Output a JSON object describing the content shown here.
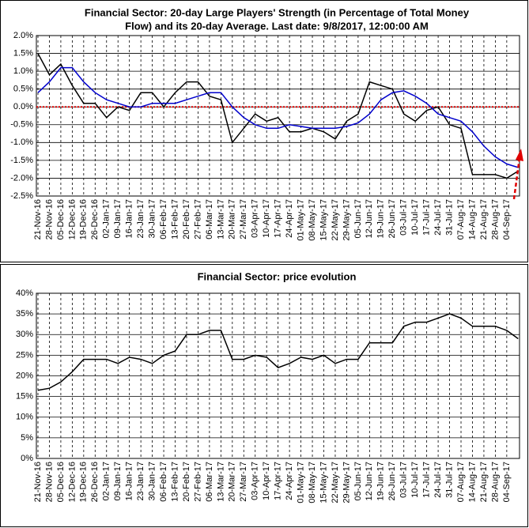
{
  "chart_data": [
    {
      "type": "line",
      "title": [
        "Financial Sector: 20-day Large Players' Strength (in Percentage of Total Money",
        "Flow) and its 20-day Average. Last date: 9/8/2017, 12:00:00 AM"
      ],
      "categories": [
        "21-Nov-16",
        "28-Nov-16",
        "05-Dec-16",
        "12-Dec-16",
        "19-Dec-16",
        "26-Dec-16",
        "02-Jan-17",
        "09-Jan-17",
        "16-Jan-17",
        "23-Jan-17",
        "30-Jan-17",
        "06-Feb-17",
        "13-Feb-17",
        "20-Feb-17",
        "27-Feb-17",
        "06-Mar-17",
        "13-Mar-17",
        "20-Mar-17",
        "27-Mar-17",
        "03-Apr-17",
        "10-Apr-17",
        "17-Apr-17",
        "24-Apr-17",
        "01-May-17",
        "08-May-17",
        "15-May-17",
        "22-May-17",
        "29-May-17",
        "05-Jun-17",
        "12-Jun-17",
        "19-Jun-17",
        "26-Jun-17",
        "03-Jul-17",
        "10-Jul-17",
        "17-Jul-17",
        "24-Jul-17",
        "31-Jul-17",
        "07-Aug-17",
        "14-Aug-17",
        "21-Aug-17",
        "28-Aug-17",
        "04-Sep-17",
        null
      ],
      "series": [
        {
          "color": "#000000",
          "values": [
            1.5,
            0.9,
            1.2,
            0.6,
            0.1,
            0.1,
            -0.3,
            0.0,
            -0.1,
            0.4,
            0.4,
            0.0,
            0.4,
            0.7,
            0.7,
            0.3,
            0.2,
            -1.0,
            -0.6,
            -0.2,
            -0.4,
            -0.3,
            -0.7,
            -0.7,
            -0.6,
            -0.7,
            -0.9,
            -0.4,
            -0.2,
            0.7,
            0.6,
            0.5,
            -0.2,
            -0.4,
            -0.1,
            0.0,
            -0.5,
            -0.6,
            -1.9,
            -1.9,
            -1.9,
            -2.0,
            -1.8
          ]
        },
        {
          "color": "#0000cc",
          "values": [
            0.4,
            0.7,
            1.1,
            1.1,
            0.7,
            0.4,
            0.2,
            0.1,
            0.0,
            0.0,
            0.1,
            0.1,
            0.1,
            0.2,
            0.3,
            0.4,
            0.4,
            0.0,
            -0.3,
            -0.5,
            -0.6,
            -0.6,
            -0.5,
            -0.55,
            -0.6,
            -0.6,
            -0.6,
            -0.55,
            -0.45,
            -0.2,
            0.2,
            0.4,
            0.45,
            0.3,
            0.1,
            -0.2,
            -0.3,
            -0.4,
            -0.7,
            -1.1,
            -1.4,
            -1.6,
            -1.7
          ]
        }
      ],
      "reference_line": {
        "value": 0,
        "color": "#dd0000"
      },
      "ylim": [
        -2.5,
        2
      ],
      "yticks": [
        {
          "value": -2.5,
          "label": "-2.5%"
        },
        {
          "value": -2,
          "label": "-2.0%"
        },
        {
          "value": -1.5,
          "label": "-1.5%"
        },
        {
          "value": -1,
          "label": "-1.0%"
        },
        {
          "value": -0.5,
          "label": "-0.5%"
        },
        {
          "value": 0,
          "label": "0.0%"
        },
        {
          "value": 0.5,
          "label": "0.5%"
        },
        {
          "value": 1,
          "label": "1.0%"
        },
        {
          "value": 1.5,
          "label": "1.5%"
        },
        {
          "value": 2,
          "label": "2.0%"
        }
      ],
      "grid": true
    },
    {
      "type": "line",
      "title": [
        "Financial Sector: price evolution"
      ],
      "categories": [
        "21-Nov-16",
        "28-Nov-16",
        "05-Dec-16",
        "12-Dec-16",
        "19-Dec-16",
        "26-Dec-16",
        "02-Jan-17",
        "09-Jan-17",
        "16-Jan-17",
        "23-Jan-17",
        "30-Jan-17",
        "06-Feb-17",
        "13-Feb-17",
        "20-Feb-17",
        "27-Feb-17",
        "06-Mar-17",
        "13-Mar-17",
        "20-Mar-17",
        "27-Mar-17",
        "03-Apr-17",
        "10-Apr-17",
        "17-Apr-17",
        "24-Apr-17",
        "01-May-17",
        "08-May-17",
        "15-May-17",
        "22-May-17",
        "29-May-17",
        "05-Jun-17",
        "12-Jun-17",
        "19-Jun-17",
        "26-Jun-17",
        "03-Jul-17",
        "10-Jul-17",
        "17-Jul-17",
        "24-Jul-17",
        "31-Jul-17",
        "07-Aug-17",
        "14-Aug-17",
        "21-Aug-17",
        "28-Aug-17",
        "04-Sep-17",
        null
      ],
      "series": [
        {
          "color": "#000000",
          "values": [
            16.5,
            17,
            18.5,
            21,
            24,
            24,
            24,
            23,
            24.5,
            24,
            23,
            25,
            26,
            30,
            30,
            31,
            31,
            24,
            24,
            25,
            24.5,
            22,
            23,
            24.5,
            24,
            25,
            23,
            24,
            24,
            28,
            28,
            28,
            32,
            33,
            33,
            34,
            35,
            34,
            32,
            32,
            32,
            31,
            29
          ]
        }
      ],
      "ylim": [
        0,
        40
      ],
      "yticks": [
        {
          "value": 0,
          "label": "0%"
        },
        {
          "value": 5,
          "label": "5%"
        },
        {
          "value": 10,
          "label": "10%"
        },
        {
          "value": 15,
          "label": "15%"
        },
        {
          "value": 20,
          "label": "20%"
        },
        {
          "value": 25,
          "label": "25%"
        },
        {
          "value": 30,
          "label": "30%"
        },
        {
          "value": 35,
          "label": "35%"
        },
        {
          "value": 40,
          "label": "40%"
        }
      ],
      "grid": true
    }
  ]
}
